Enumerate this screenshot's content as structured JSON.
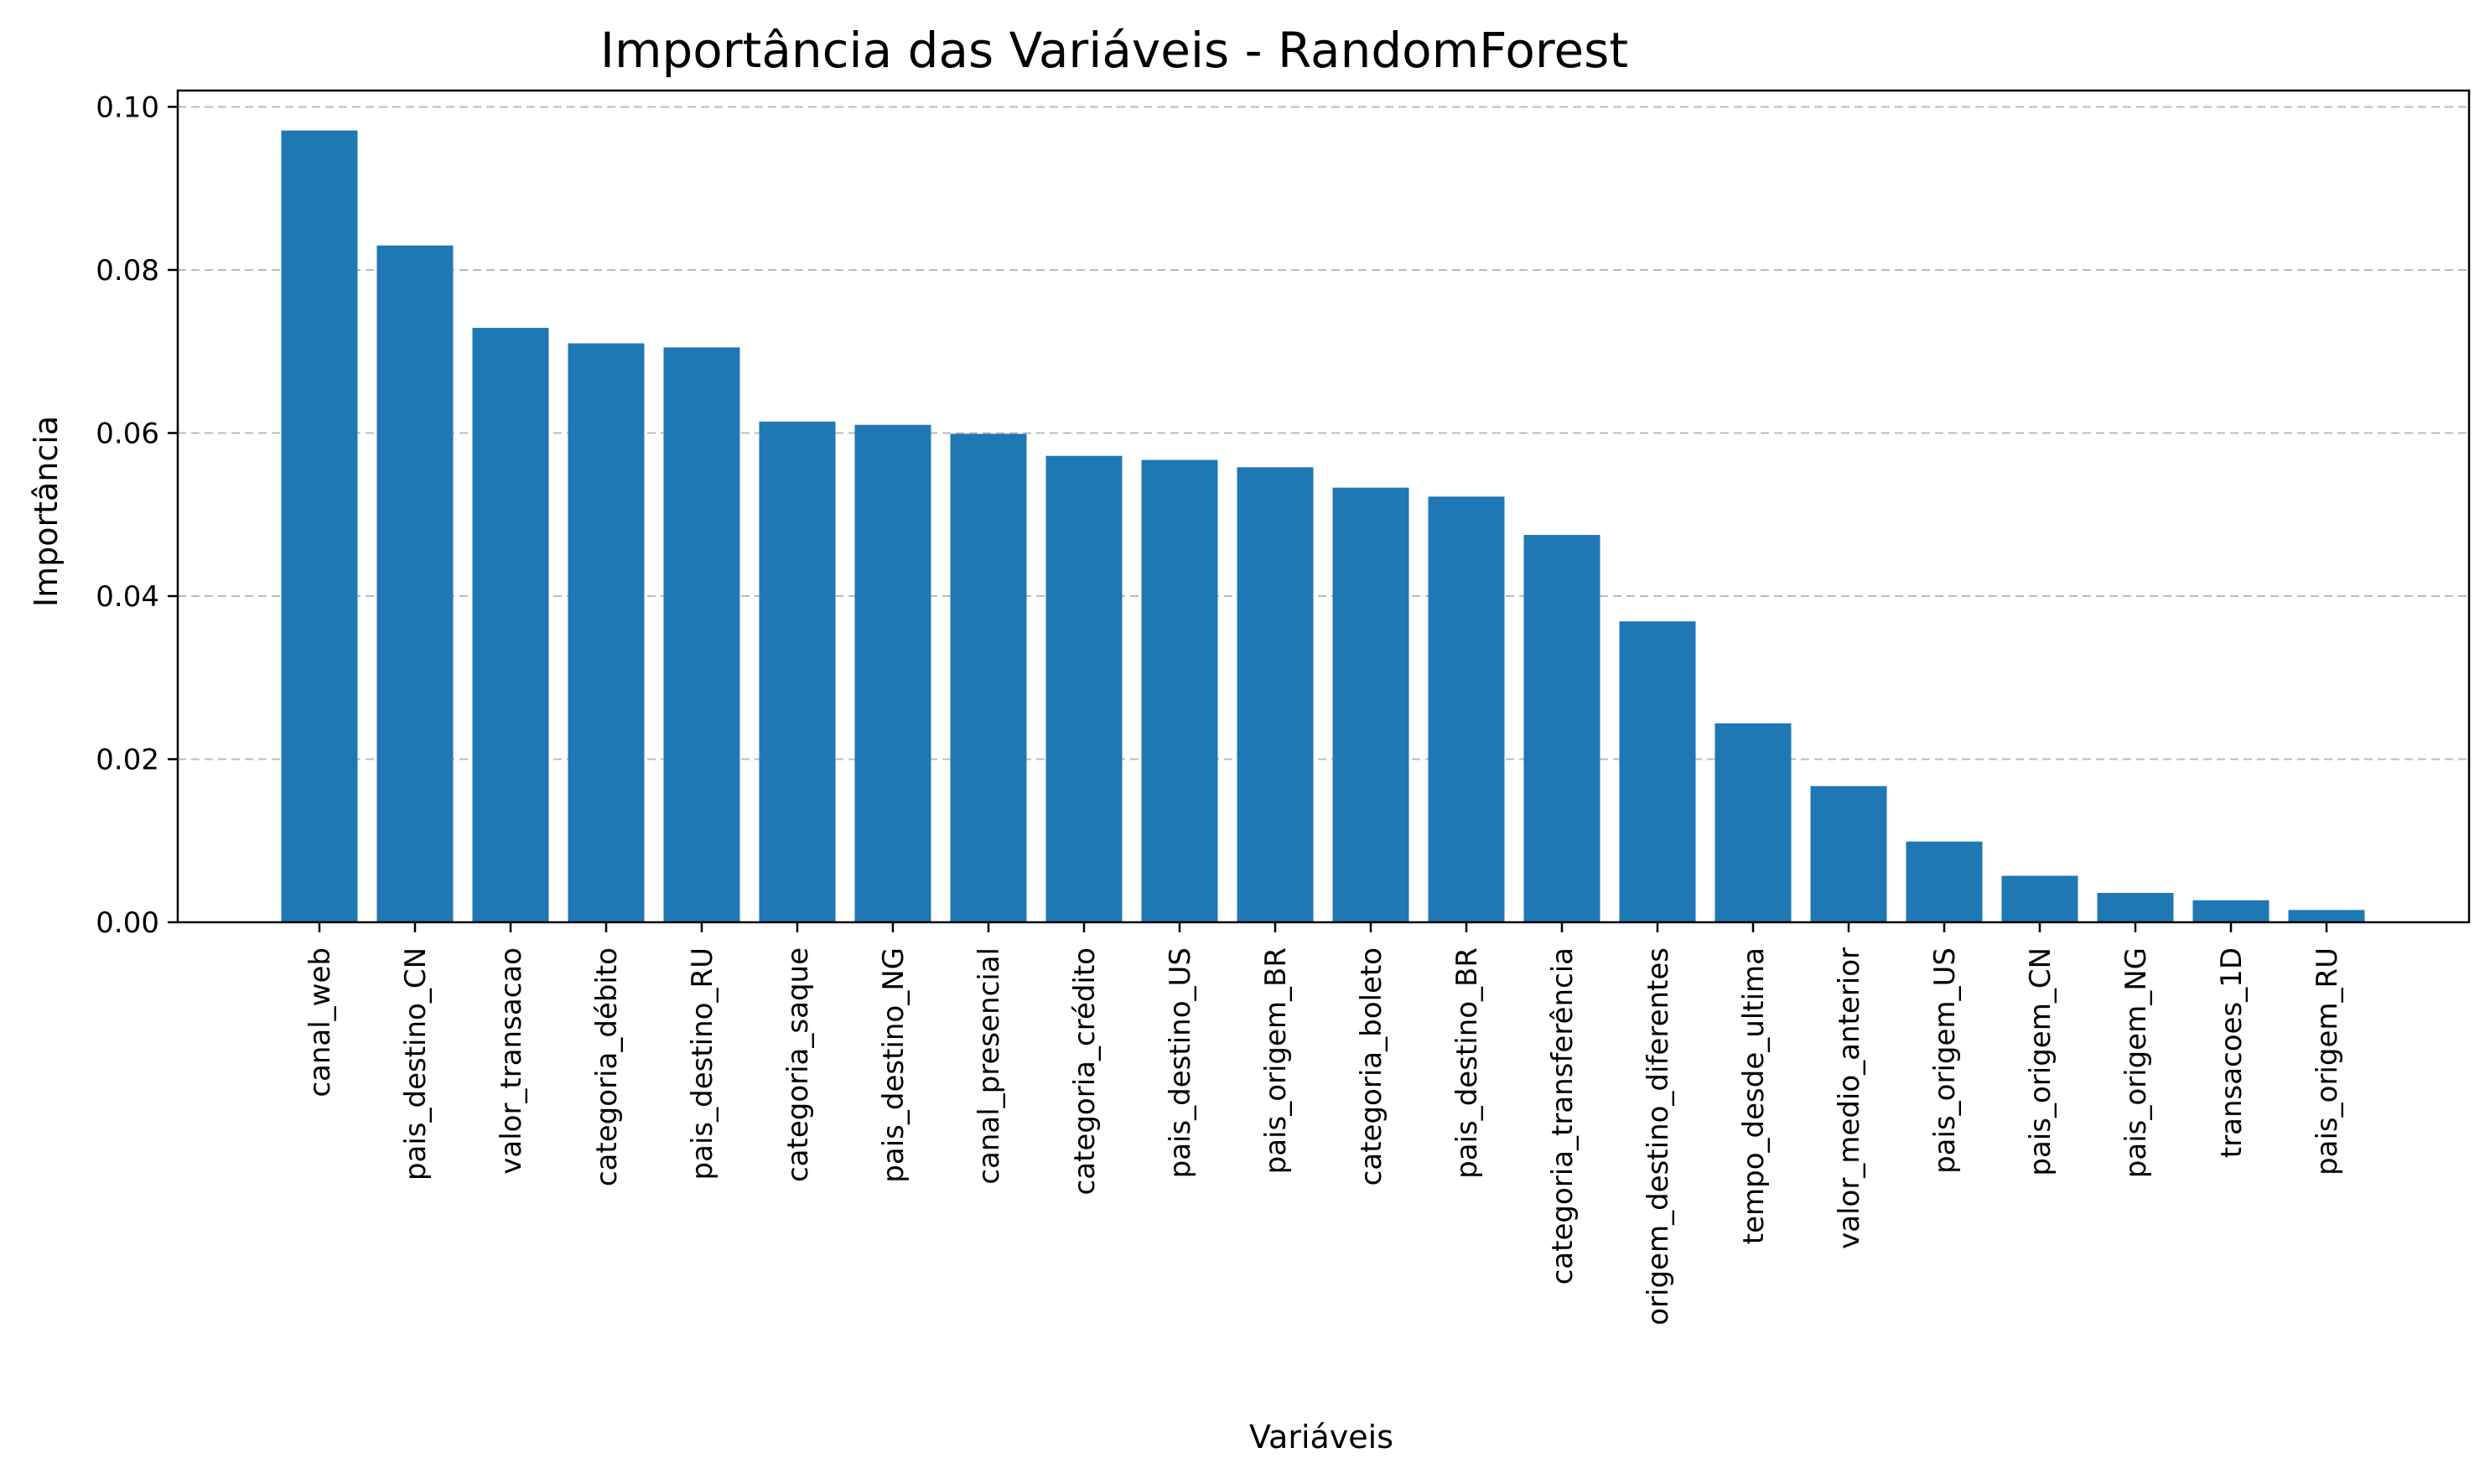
{
  "chart_data": {
    "type": "bar",
    "title": "Importância das Variáveis - RandomForest",
    "xlabel": "Variáveis",
    "ylabel": "Importância",
    "ylim": [
      0,
      0.102
    ],
    "yticks": [
      "0.00",
      "0.02",
      "0.04",
      "0.06",
      "0.08",
      "0.10"
    ],
    "grid": "y-dashed",
    "bar_color": "#1f77b4",
    "categories": [
      "canal_web",
      "pais_destino_CN",
      "valor_transacao",
      "categoria_débito",
      "pais_destino_RU",
      "categoria_saque",
      "pais_destino_NG",
      "canal_presencial",
      "categoria_crédito",
      "pais_destino_US",
      "pais_origem_BR",
      "categoria_boleto",
      "pais_destino_BR",
      "categoria_transferência",
      "origem_destino_diferentes",
      "tempo_desde_ultima",
      "valor_medio_anterior",
      "pais_origem_US",
      "pais_origem_CN",
      "pais_origem_NG",
      "transacoes_1D",
      "pais_origem_RU"
    ],
    "values": [
      0.0971,
      0.083,
      0.0729,
      0.071,
      0.0705,
      0.0614,
      0.061,
      0.0599,
      0.0572,
      0.0567,
      0.0558,
      0.0533,
      0.0522,
      0.0475,
      0.0369,
      0.0244,
      0.0167,
      0.0099,
      0.0057,
      0.0036,
      0.0027,
      0.0015
    ]
  }
}
